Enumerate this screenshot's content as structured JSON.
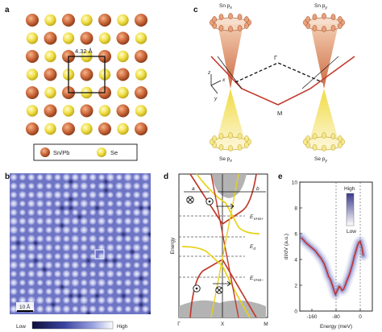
{
  "panel_labels": [
    "a",
    "b",
    "c",
    "d",
    "e"
  ],
  "colors": {
    "sn_atom": "#c8663a",
    "se_atom": "#f2e24a",
    "stm_bg": "#7a80c8",
    "band_red": "#c0392b",
    "band_yellow": "#e8d21a",
    "gray_band": "#b3b3b3",
    "spectrum_red": "#c03030"
  },
  "a": {
    "lattice_label": "4.32 Å",
    "legend": {
      "sn": "Sn/Pb",
      "se": "Se"
    }
  },
  "b": {
    "scale_label": "10 Å",
    "colorbar_low": "Low",
    "colorbar_high": "High"
  },
  "c": {
    "top_left": "Sn p",
    "top_left_sub": "x",
    "top_right": "Sn p",
    "top_right_sub": "y",
    "bottom_left": "Se p",
    "bottom_left_sub": "x",
    "bottom_right": "Se p",
    "bottom_right_sub": "y",
    "gamma": "Γ",
    "m": "M",
    "axis_x": "x",
    "axis_y": "y",
    "axis_z": "z"
  },
  "d": {
    "ylabel": "Energy",
    "e_vhs_plus": "E",
    "e_vhs_plus_sub": "VHS+",
    "e_d": "E",
    "e_d_sub": "d",
    "e_vhs_minus": "E",
    "e_vhs_minus_sub": "VHS−",
    "label_a": "a",
    "label_b": "b",
    "xticks": [
      "Γ",
      "X",
      "M"
    ]
  },
  "e": {
    "colorbar_high": "High",
    "colorbar_low": "Low"
  },
  "chart_data": {
    "type": "line",
    "title": "",
    "xlabel": "Energy (meV)",
    "ylabel": "dI/dV (a.u.)",
    "xlim": [
      -200,
      40
    ],
    "ylim": [
      0,
      10
    ],
    "xticks": [
      -160,
      -80,
      0
    ],
    "yticks": [
      0,
      2,
      4,
      6,
      8,
      10
    ],
    "series": [
      {
        "x": [
          -195,
          -180,
          -165,
          -150,
          -140,
          -130,
          -120,
          -112,
          -105,
          -98,
          -92,
          -87,
          -82,
          -78,
          -74,
          -70,
          -65,
          -60,
          -55,
          -50,
          -45,
          -40,
          -35,
          -30,
          -25,
          -20,
          -15,
          -10,
          -5,
          0,
          5,
          10
        ],
        "values": [
          5.7,
          5.3,
          5.0,
          4.7,
          4.4,
          4.1,
          3.7,
          3.2,
          2.7,
          2.4,
          2.0,
          1.6,
          1.3,
          1.5,
          1.7,
          1.9,
          1.8,
          1.6,
          1.7,
          2.0,
          2.3,
          2.6,
          2.9,
          3.3,
          3.7,
          4.2,
          4.6,
          5.0,
          5.3,
          5.4,
          5.0,
          4.3
        ]
      }
    ]
  }
}
